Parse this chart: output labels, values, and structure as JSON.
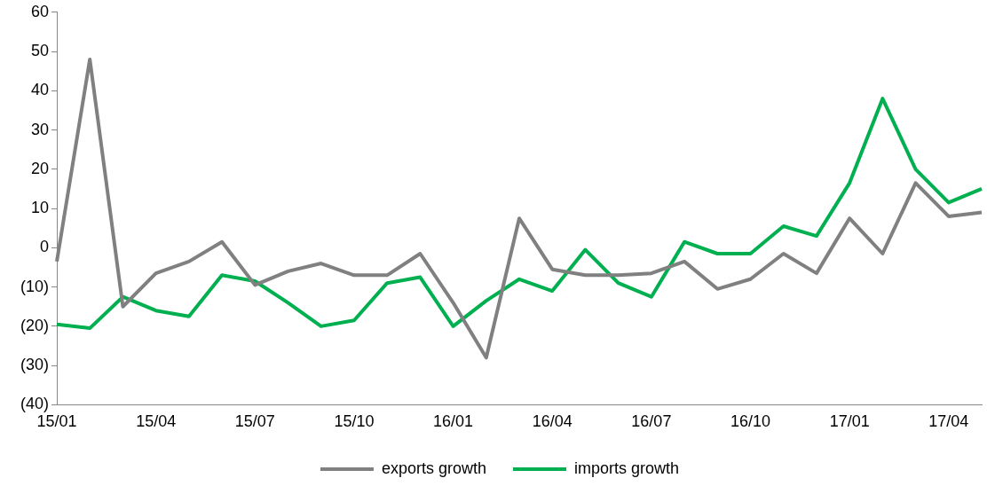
{
  "chart_data": {
    "type": "line",
    "categories": [
      "15/01",
      null,
      null,
      "15/04",
      null,
      null,
      "15/07",
      null,
      null,
      "15/10",
      null,
      null,
      "16/01",
      null,
      null,
      "16/04",
      null,
      null,
      "16/07",
      null,
      null,
      "16/10",
      null,
      null,
      "17/01",
      null,
      null,
      "17/04",
      null
    ],
    "series": [
      {
        "name": "exports growth",
        "color": "#808080",
        "values": [
          -3.5,
          48,
          -15,
          -6.5,
          -3.5,
          1.5,
          -9.5,
          -6,
          -4,
          -7,
          -7,
          -1.5,
          -14,
          -28,
          7.5,
          -5.5,
          -7,
          -7,
          -6.5,
          -3.5,
          -10.5,
          -8,
          -1.5,
          -6.5,
          7.5,
          -1.5,
          16.5,
          8,
          9
        ]
      },
      {
        "name": "imports growth",
        "color": "#00b050",
        "values": [
          -19.5,
          -20.5,
          -12.5,
          -16,
          -17.5,
          -7,
          -8.5,
          -14,
          -20,
          -18.5,
          -9,
          -7.5,
          -20,
          -13.5,
          -8,
          -11,
          -0.5,
          -9,
          -12.5,
          1.5,
          -1.5,
          -1.5,
          5.5,
          3,
          16.5,
          38,
          20,
          11.5,
          15
        ]
      }
    ],
    "ylim": [
      -40,
      60
    ],
    "yticks": [
      {
        "value": -40,
        "label": "(40)"
      },
      {
        "value": -30,
        "label": "(30)"
      },
      {
        "value": -20,
        "label": "(20)"
      },
      {
        "value": -10,
        "label": "(10)"
      },
      0,
      10,
      20,
      30,
      40,
      50,
      60
    ],
    "grid": false,
    "legend": "bottom",
    "marker": "none",
    "line_style": "solid"
  }
}
